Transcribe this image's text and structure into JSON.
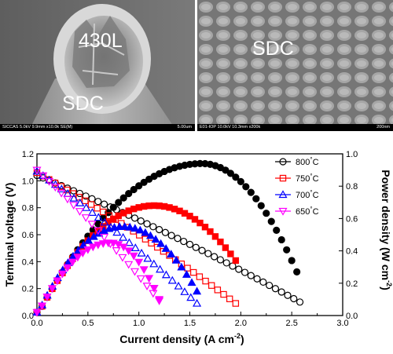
{
  "sem_images": {
    "left": {
      "labels": [
        "430L",
        "SDC"
      ],
      "info": "SICCAS 5.0kV 9.9mm x10.0k SE(M)",
      "scale": "5.00um"
    },
    "right": {
      "labels": [
        "SDC"
      ],
      "info": "E01-IOP 10.0kV 10.3mm x200k",
      "scale": "200nm"
    }
  },
  "chart_data": {
    "type": "scatter",
    "xlabel": "Current density (A cm",
    "xlabel_sup": "-2",
    "xlabel_end": ")",
    "ylabel_left": "Terminal voltage (V)",
    "ylabel_right": "Power density (W cm",
    "ylabel_right_sup": "-2",
    "ylabel_right_end": ")",
    "xlim": [
      0.0,
      3.0
    ],
    "ylim_left": [
      0.0,
      1.2
    ],
    "ylim_right": [
      0.0,
      1.0
    ],
    "x_ticks": [
      "0.0",
      "0.5",
      "1.0",
      "1.5",
      "2.0",
      "2.5",
      "3.0"
    ],
    "y_left_ticks": [
      "0.0",
      "0.2",
      "0.4",
      "0.6",
      "0.8",
      "1.0",
      "1.2"
    ],
    "y_right_ticks": [
      "0.0",
      "0.2",
      "0.4",
      "0.6",
      "0.8",
      "1.0"
    ],
    "legend_position": "top-right",
    "series": [
      {
        "name": "800",
        "unit": "°C",
        "color": "#000000",
        "marker": "circle",
        "ocv": 1.04,
        "voltage_end": [
          2.58,
          0.1
        ],
        "power_peak": [
          1.62,
          0.94
        ],
        "power_end": [
          2.55,
          0.27
        ]
      },
      {
        "name": "750",
        "unit": "°C",
        "color": "#ff0000",
        "marker": "square",
        "ocv": 1.06,
        "voltage_end": [
          1.95,
          0.09
        ],
        "power_peak": [
          1.15,
          0.68
        ],
        "power_end": [
          1.95,
          0.34
        ]
      },
      {
        "name": "700",
        "unit": "°C",
        "color": "#0000ff",
        "marker": "triangle",
        "ocv": 1.07,
        "voltage_end": [
          1.57,
          0.09
        ],
        "power_peak": [
          0.84,
          0.55
        ],
        "power_end": [
          1.57,
          0.15
        ]
      },
      {
        "name": "650",
        "unit": "°C",
        "color": "#ff00ff",
        "marker": "triangle-down",
        "ocv": 1.08,
        "voltage_end": [
          1.2,
          0.11
        ],
        "power_peak": [
          0.72,
          0.45
        ],
        "power_end": [
          1.2,
          0.1
        ]
      }
    ]
  }
}
